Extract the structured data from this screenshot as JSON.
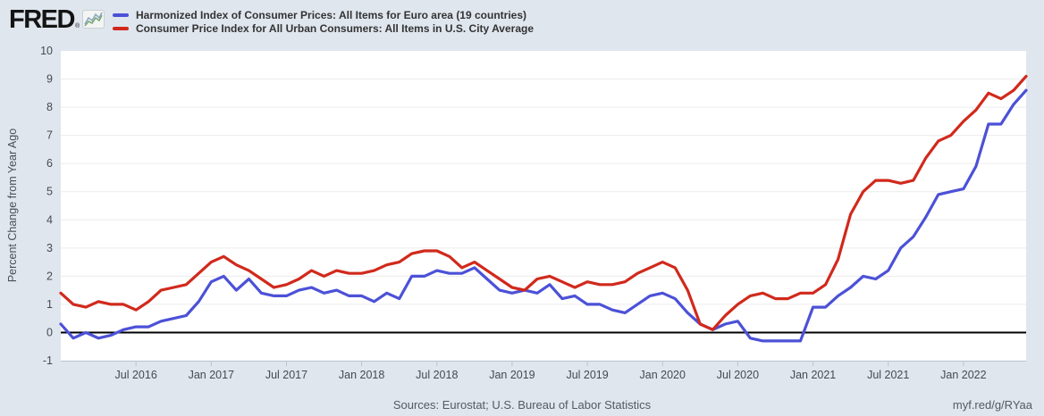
{
  "header": {
    "logo_text": "FRED",
    "logo_reg": "®",
    "legend": [
      {
        "label": "Harmonized Index of Consumer Prices: All Items for Euro area (19 countries)",
        "color": "#4c51d7"
      },
      {
        "label": "Consumer Price Index for All Urban Consumers: All Items in U.S. City Average",
        "color": "#d1291c"
      }
    ]
  },
  "footer": {
    "sources": "Sources: Eurostat; U.S. Bureau of Labor Statistics",
    "link": "myf.red/g/RYaa"
  },
  "colors": {
    "background": "#dfe6ee",
    "plot_background": "#ffffff",
    "grid": "#ececec",
    "zero_line": "#000000",
    "axis": "#b9c4d3",
    "tick_text": "#444a52",
    "ylabel_text": "#4a4f55"
  },
  "chart_data": {
    "type": "line",
    "title": "",
    "xlabel": "",
    "ylabel": "Percent Change from Year Ago",
    "axis": {
      "y_min": -1,
      "y_max": 10
    },
    "grid": "horizontal",
    "zero_line": true,
    "legend_position": "top",
    "y_ticks": [
      10,
      9,
      8,
      7,
      6,
      5,
      4,
      3,
      2,
      1,
      0,
      -1
    ],
    "x_ticks": [
      {
        "label": "Jul 2016",
        "month_index": 6
      },
      {
        "label": "Jan 2017",
        "month_index": 12
      },
      {
        "label": "Jul 2017",
        "month_index": 18
      },
      {
        "label": "Jan 2018",
        "month_index": 24
      },
      {
        "label": "Jul 2018",
        "month_index": 30
      },
      {
        "label": "Jan 2019",
        "month_index": 36
      },
      {
        "label": "Jul 2019",
        "month_index": 42
      },
      {
        "label": "Jan 2020",
        "month_index": 48
      },
      {
        "label": "Jul 2020",
        "month_index": 54
      },
      {
        "label": "Jan 2021",
        "month_index": 60
      },
      {
        "label": "Jul 2021",
        "month_index": 66
      },
      {
        "label": "Jan 2022",
        "month_index": 72
      }
    ],
    "months": [
      "2016-01",
      "2016-02",
      "2016-03",
      "2016-04",
      "2016-05",
      "2016-06",
      "2016-07",
      "2016-08",
      "2016-09",
      "2016-10",
      "2016-11",
      "2016-12",
      "2017-01",
      "2017-02",
      "2017-03",
      "2017-04",
      "2017-05",
      "2017-06",
      "2017-07",
      "2017-08",
      "2017-09",
      "2017-10",
      "2017-11",
      "2017-12",
      "2018-01",
      "2018-02",
      "2018-03",
      "2018-04",
      "2018-05",
      "2018-06",
      "2018-07",
      "2018-08",
      "2018-09",
      "2018-10",
      "2018-11",
      "2018-12",
      "2019-01",
      "2019-02",
      "2019-03",
      "2019-04",
      "2019-05",
      "2019-06",
      "2019-07",
      "2019-08",
      "2019-09",
      "2019-10",
      "2019-11",
      "2019-12",
      "2020-01",
      "2020-02",
      "2020-03",
      "2020-04",
      "2020-05",
      "2020-06",
      "2020-07",
      "2020-08",
      "2020-09",
      "2020-10",
      "2020-11",
      "2020-12",
      "2021-01",
      "2021-02",
      "2021-03",
      "2021-04",
      "2021-05",
      "2021-06",
      "2021-07",
      "2021-08",
      "2021-09",
      "2021-10",
      "2021-11",
      "2021-12",
      "2022-01",
      "2022-02",
      "2022-03",
      "2022-04",
      "2022-05",
      "2022-06"
    ],
    "series": [
      {
        "name": "Harmonized Index of Consumer Prices: All Items for Euro area (19 countries)",
        "color": "#4c51d7",
        "values": [
          0.3,
          -0.2,
          0.0,
          -0.2,
          -0.1,
          0.1,
          0.2,
          0.2,
          0.4,
          0.5,
          0.6,
          1.1,
          1.8,
          2.0,
          1.5,
          1.9,
          1.4,
          1.3,
          1.3,
          1.5,
          1.6,
          1.4,
          1.5,
          1.3,
          1.3,
          1.1,
          1.4,
          1.2,
          2.0,
          2.0,
          2.2,
          2.1,
          2.1,
          2.3,
          1.9,
          1.5,
          1.4,
          1.5,
          1.4,
          1.7,
          1.2,
          1.3,
          1.0,
          1.0,
          0.8,
          0.7,
          1.0,
          1.3,
          1.4,
          1.2,
          0.7,
          0.3,
          0.1,
          0.3,
          0.4,
          -0.2,
          -0.3,
          -0.3,
          -0.3,
          -0.3,
          0.9,
          0.9,
          1.3,
          1.6,
          2.0,
          1.9,
          2.2,
          3.0,
          3.4,
          4.1,
          4.9,
          5.0,
          5.1,
          5.9,
          7.4,
          7.4,
          8.1,
          8.6
        ]
      },
      {
        "name": "Consumer Price Index for All Urban Consumers: All Items in U.S. City Average",
        "color": "#d1291c",
        "values": [
          1.4,
          1.0,
          0.9,
          1.1,
          1.0,
          1.0,
          0.8,
          1.1,
          1.5,
          1.6,
          1.7,
          2.1,
          2.5,
          2.7,
          2.4,
          2.2,
          1.9,
          1.6,
          1.7,
          1.9,
          2.2,
          2.0,
          2.2,
          2.1,
          2.1,
          2.2,
          2.4,
          2.5,
          2.8,
          2.9,
          2.9,
          2.7,
          2.3,
          2.5,
          2.2,
          1.9,
          1.6,
          1.5,
          1.9,
          2.0,
          1.8,
          1.6,
          1.8,
          1.7,
          1.7,
          1.8,
          2.1,
          2.3,
          2.5,
          2.3,
          1.5,
          0.3,
          0.1,
          0.6,
          1.0,
          1.3,
          1.4,
          1.2,
          1.2,
          1.4,
          1.4,
          1.7,
          2.6,
          4.2,
          5.0,
          5.4,
          5.4,
          5.3,
          5.4,
          6.2,
          6.8,
          7.0,
          7.5,
          7.9,
          8.5,
          8.3,
          8.6,
          9.1
        ]
      }
    ]
  }
}
